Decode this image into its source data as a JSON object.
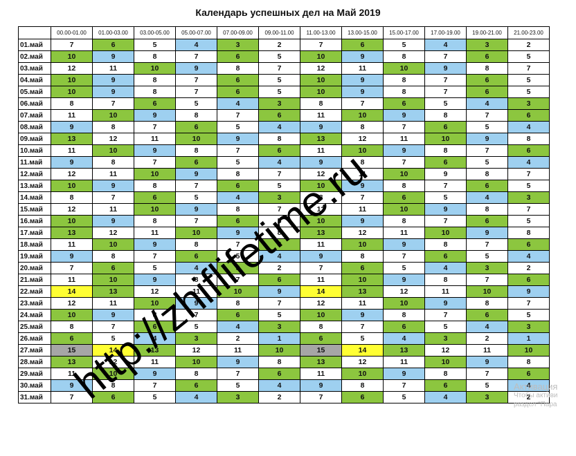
{
  "title": "Календарь успешных дел на Май 2019",
  "time_slots": [
    "00.00-01.00",
    "01.00-03.00",
    "03.00-05.00",
    "05.00-07.00",
    "07.00-09.00",
    "09.00-11.00",
    "11.00-13.00",
    "13.00-15.00",
    "15.00-17.00",
    "17.00-19.00",
    "19.00-21.00",
    "21.00-23.00"
  ],
  "legend_colors": {
    "g": "#8cc63f",
    "b": "#9ed0f0",
    "y": "#ffff33",
    "s": "#a6a6a6",
    "w": "#ffffff"
  },
  "rows": [
    {
      "day": "01.май",
      "values": [
        7,
        6,
        5,
        4,
        3,
        2,
        7,
        6,
        5,
        4,
        3,
        2
      ],
      "colors": [
        "w",
        "g",
        "w",
        "b",
        "g",
        "w",
        "w",
        "g",
        "w",
        "b",
        "g",
        "w"
      ]
    },
    {
      "day": "02.май",
      "values": [
        10,
        9,
        8,
        7,
        6,
        5,
        10,
        9,
        8,
        7,
        6,
        5
      ],
      "colors": [
        "g",
        "b",
        "w",
        "w",
        "g",
        "w",
        "g",
        "b",
        "w",
        "w",
        "g",
        "w"
      ]
    },
    {
      "day": "03.май",
      "values": [
        12,
        11,
        10,
        9,
        8,
        7,
        12,
        11,
        10,
        9,
        8,
        7
      ],
      "colors": [
        "w",
        "w",
        "g",
        "b",
        "w",
        "w",
        "w",
        "w",
        "g",
        "b",
        "w",
        "w"
      ]
    },
    {
      "day": "04.май",
      "values": [
        10,
        9,
        8,
        7,
        6,
        5,
        10,
        9,
        8,
        7,
        6,
        5
      ],
      "colors": [
        "g",
        "b",
        "w",
        "w",
        "g",
        "w",
        "g",
        "b",
        "w",
        "w",
        "g",
        "w"
      ]
    },
    {
      "day": "05.май",
      "values": [
        10,
        9,
        8,
        7,
        6,
        5,
        10,
        9,
        8,
        7,
        6,
        5
      ],
      "colors": [
        "g",
        "b",
        "w",
        "w",
        "g",
        "w",
        "g",
        "b",
        "w",
        "w",
        "g",
        "w"
      ]
    },
    {
      "day": "06.май",
      "values": [
        8,
        7,
        6,
        5,
        4,
        3,
        8,
        7,
        6,
        5,
        4,
        3
      ],
      "colors": [
        "w",
        "w",
        "g",
        "w",
        "b",
        "g",
        "w",
        "w",
        "g",
        "w",
        "b",
        "g"
      ]
    },
    {
      "day": "07.май",
      "values": [
        11,
        10,
        9,
        8,
        7,
        6,
        11,
        10,
        9,
        8,
        7,
        6
      ],
      "colors": [
        "w",
        "g",
        "b",
        "w",
        "w",
        "g",
        "w",
        "g",
        "b",
        "w",
        "w",
        "g"
      ]
    },
    {
      "day": "08.май",
      "values": [
        9,
        8,
        7,
        6,
        5,
        4,
        9,
        8,
        7,
        6,
        5,
        4
      ],
      "colors": [
        "b",
        "w",
        "w",
        "g",
        "w",
        "b",
        "b",
        "w",
        "w",
        "g",
        "w",
        "b"
      ]
    },
    {
      "day": "09.май",
      "values": [
        13,
        12,
        11,
        10,
        9,
        8,
        13,
        12,
        11,
        10,
        9,
        8
      ],
      "colors": [
        "g",
        "w",
        "w",
        "g",
        "b",
        "w",
        "g",
        "w",
        "w",
        "g",
        "b",
        "w"
      ]
    },
    {
      "day": "10.май",
      "values": [
        11,
        10,
        9,
        8,
        7,
        6,
        11,
        10,
        9,
        8,
        7,
        6
      ],
      "colors": [
        "w",
        "g",
        "b",
        "w",
        "w",
        "g",
        "w",
        "g",
        "b",
        "w",
        "w",
        "g"
      ]
    },
    {
      "day": "11.май",
      "values": [
        9,
        8,
        7,
        6,
        5,
        4,
        9,
        8,
        7,
        6,
        5,
        4
      ],
      "colors": [
        "b",
        "w",
        "w",
        "g",
        "w",
        "b",
        "b",
        "w",
        "w",
        "g",
        "w",
        "b"
      ]
    },
    {
      "day": "12.май",
      "values": [
        12,
        11,
        10,
        9,
        8,
        7,
        12,
        11,
        10,
        9,
        8,
        7
      ],
      "colors": [
        "w",
        "w",
        "g",
        "b",
        "w",
        "w",
        "w",
        "w",
        "g",
        "w",
        "w",
        "w"
      ]
    },
    {
      "day": "13.май",
      "values": [
        10,
        9,
        8,
        7,
        6,
        5,
        10,
        9,
        8,
        7,
        6,
        5
      ],
      "colors": [
        "g",
        "b",
        "w",
        "w",
        "g",
        "w",
        "g",
        "b",
        "w",
        "w",
        "g",
        "w"
      ]
    },
    {
      "day": "14.май",
      "values": [
        8,
        7,
        6,
        5,
        4,
        3,
        8,
        7,
        6,
        5,
        4,
        3
      ],
      "colors": [
        "w",
        "w",
        "g",
        "w",
        "b",
        "g",
        "w",
        "w",
        "g",
        "w",
        "b",
        "g"
      ]
    },
    {
      "day": "15.май",
      "values": [
        12,
        11,
        10,
        9,
        8,
        7,
        12,
        11,
        10,
        9,
        8,
        7
      ],
      "colors": [
        "w",
        "w",
        "g",
        "b",
        "w",
        "w",
        "w",
        "w",
        "g",
        "b",
        "w",
        "w"
      ]
    },
    {
      "day": "16.май",
      "values": [
        10,
        9,
        8,
        7,
        6,
        5,
        10,
        9,
        8,
        7,
        6,
        5
      ],
      "colors": [
        "g",
        "b",
        "w",
        "w",
        "g",
        "w",
        "g",
        "b",
        "w",
        "w",
        "g",
        "w"
      ]
    },
    {
      "day": "17.май",
      "values": [
        13,
        12,
        11,
        10,
        9,
        8,
        13,
        12,
        11,
        10,
        9,
        8
      ],
      "colors": [
        "g",
        "w",
        "w",
        "g",
        "b",
        "w",
        "g",
        "w",
        "w",
        "g",
        "b",
        "w"
      ]
    },
    {
      "day": "18.май",
      "values": [
        11,
        10,
        9,
        8,
        7,
        6,
        11,
        10,
        9,
        8,
        7,
        6
      ],
      "colors": [
        "w",
        "g",
        "b",
        "w",
        "w",
        "g",
        "w",
        "g",
        "b",
        "w",
        "w",
        "g"
      ]
    },
    {
      "day": "19.май",
      "values": [
        9,
        8,
        7,
        6,
        5,
        4,
        9,
        8,
        7,
        6,
        5,
        4
      ],
      "colors": [
        "b",
        "w",
        "w",
        "g",
        "w",
        "b",
        "b",
        "w",
        "w",
        "g",
        "w",
        "b"
      ]
    },
    {
      "day": "20.май",
      "values": [
        7,
        6,
        5,
        4,
        3,
        2,
        7,
        6,
        5,
        4,
        3,
        2
      ],
      "colors": [
        "w",
        "g",
        "w",
        "b",
        "g",
        "w",
        "w",
        "g",
        "w",
        "b",
        "g",
        "w"
      ]
    },
    {
      "day": "21.май",
      "values": [
        11,
        10,
        9,
        8,
        7,
        6,
        11,
        10,
        9,
        8,
        7,
        6
      ],
      "colors": [
        "w",
        "g",
        "b",
        "w",
        "w",
        "g",
        "w",
        "g",
        "b",
        "w",
        "w",
        "g"
      ]
    },
    {
      "day": "22.май",
      "values": [
        14,
        13,
        12,
        11,
        10,
        9,
        14,
        13,
        12,
        11,
        10,
        9
      ],
      "colors": [
        "y",
        "g",
        "w",
        "w",
        "g",
        "b",
        "y",
        "g",
        "w",
        "w",
        "g",
        "b"
      ]
    },
    {
      "day": "23.май",
      "values": [
        12,
        11,
        10,
        9,
        8,
        7,
        12,
        11,
        10,
        9,
        8,
        7
      ],
      "colors": [
        "w",
        "w",
        "g",
        "b",
        "w",
        "w",
        "w",
        "w",
        "g",
        "b",
        "w",
        "w"
      ]
    },
    {
      "day": "24.май",
      "values": [
        10,
        9,
        8,
        7,
        6,
        5,
        10,
        9,
        8,
        7,
        6,
        5
      ],
      "colors": [
        "g",
        "b",
        "w",
        "w",
        "g",
        "w",
        "g",
        "b",
        "w",
        "w",
        "g",
        "w"
      ]
    },
    {
      "day": "25.май",
      "values": [
        8,
        7,
        6,
        5,
        4,
        3,
        8,
        7,
        6,
        5,
        4,
        3
      ],
      "colors": [
        "w",
        "w",
        "g",
        "w",
        "b",
        "g",
        "w",
        "w",
        "g",
        "w",
        "b",
        "g"
      ]
    },
    {
      "day": "26.май",
      "values": [
        6,
        5,
        4,
        3,
        2,
        1,
        6,
        5,
        4,
        3,
        2,
        1
      ],
      "colors": [
        "g",
        "w",
        "b",
        "g",
        "w",
        "b",
        "g",
        "w",
        "b",
        "g",
        "w",
        "b"
      ]
    },
    {
      "day": "27.май",
      "values": [
        15,
        14,
        13,
        12,
        11,
        10,
        15,
        14,
        13,
        12,
        11,
        10
      ],
      "colors": [
        "s",
        "y",
        "g",
        "w",
        "w",
        "g",
        "s",
        "y",
        "g",
        "w",
        "w",
        "g"
      ]
    },
    {
      "day": "28.май",
      "values": [
        13,
        12,
        11,
        10,
        9,
        8,
        13,
        12,
        11,
        10,
        9,
        8
      ],
      "colors": [
        "g",
        "w",
        "w",
        "g",
        "b",
        "w",
        "g",
        "w",
        "w",
        "g",
        "b",
        "w"
      ]
    },
    {
      "day": "29.май",
      "values": [
        11,
        10,
        9,
        8,
        7,
        6,
        11,
        10,
        9,
        8,
        7,
        6
      ],
      "colors": [
        "w",
        "g",
        "b",
        "w",
        "w",
        "g",
        "w",
        "g",
        "b",
        "w",
        "w",
        "g"
      ]
    },
    {
      "day": "30.май",
      "values": [
        9,
        8,
        7,
        6,
        5,
        4,
        9,
        8,
        7,
        6,
        5,
        4
      ],
      "colors": [
        "b",
        "w",
        "w",
        "g",
        "w",
        "b",
        "b",
        "w",
        "w",
        "g",
        "w",
        "b"
      ]
    },
    {
      "day": "31.май",
      "values": [
        7,
        6,
        5,
        4,
        3,
        2,
        7,
        6,
        5,
        4,
        3,
        2
      ],
      "colors": [
        "w",
        "g",
        "w",
        "b",
        "g",
        "w",
        "w",
        "g",
        "w",
        "b",
        "g",
        "w"
      ]
    }
  ],
  "watermark": {
    "text": "http://zhiflifetime.ru",
    "color": "#000000"
  },
  "activation_notice": {
    "line1": "Активация",
    "line2": "Чтобы активи",
    "line3": "раздел \"Пара"
  }
}
